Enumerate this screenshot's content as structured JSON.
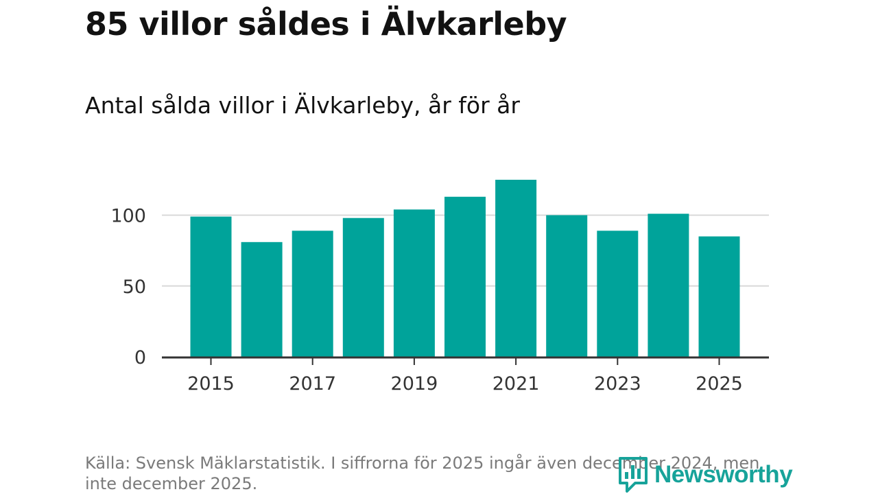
{
  "header": {
    "title": "85 villor såldes i Älvkarleby",
    "subtitle": "Antal sålda villor i Älvkarleby, år för år"
  },
  "footer": {
    "source_text": "Källa: Svensk Mäklarstatistik. I siffrorna för 2025 ingår även december 2024, men inte december 2025.",
    "brand": "Newsworthy"
  },
  "colors": {
    "bar": "#00a39a",
    "brand": "#17a39a",
    "grid": "#d9d9d9",
    "axis": "#333333"
  },
  "chart_data": {
    "type": "bar",
    "title": "Antal sålda villor i Älvkarleby, år för år",
    "xlabel": "",
    "ylabel": "",
    "categories": [
      "2015",
      "2016",
      "2017",
      "2018",
      "2019",
      "2020",
      "2021",
      "2022",
      "2023",
      "2024",
      "2025"
    ],
    "values": [
      99,
      81,
      89,
      98,
      104,
      113,
      125,
      100,
      89,
      101,
      85
    ],
    "ylim": [
      0,
      125
    ],
    "y_ticks": [
      0,
      50,
      100
    ],
    "x_tick_labels": [
      "2015",
      "2017",
      "2019",
      "2021",
      "2023",
      "2025"
    ],
    "grid": true
  }
}
